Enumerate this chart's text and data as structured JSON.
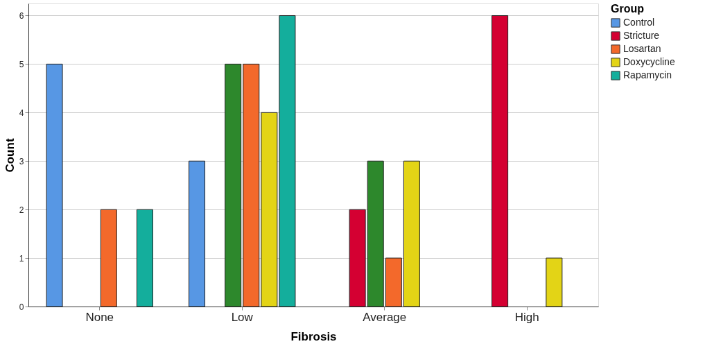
{
  "chart_data": {
    "type": "bar",
    "xlabel": "Fibrosis",
    "ylabel": "Count",
    "legend_title": "Group",
    "legend": "top right",
    "grid": "y",
    "categories": [
      "None",
      "Low",
      "Average",
      "High"
    ],
    "ylim": [
      0,
      6.25
    ],
    "yticks": [
      0,
      1,
      2,
      3,
      4,
      5,
      6
    ],
    "series": [
      {
        "name": "Control",
        "color": "#5797e4",
        "values": [
          5,
          3,
          null,
          null
        ]
      },
      {
        "name": "Stricture",
        "color": "#d40032",
        "values": [
          null,
          null,
          2,
          6
        ]
      },
      {
        "color": "#2d882c",
        "values": [
          null,
          5,
          3,
          null
        ]
      },
      {
        "name": "Losartan",
        "color": "#f3692b",
        "values": [
          2,
          5,
          1,
          null
        ]
      },
      {
        "name": "Doxycycline",
        "color": "#e3d416",
        "values": [
          null,
          4,
          3,
          1
        ]
      },
      {
        "name": "Rapamycin",
        "color": "#14ae9c",
        "values": [
          2,
          6,
          null,
          null
        ]
      }
    ]
  }
}
